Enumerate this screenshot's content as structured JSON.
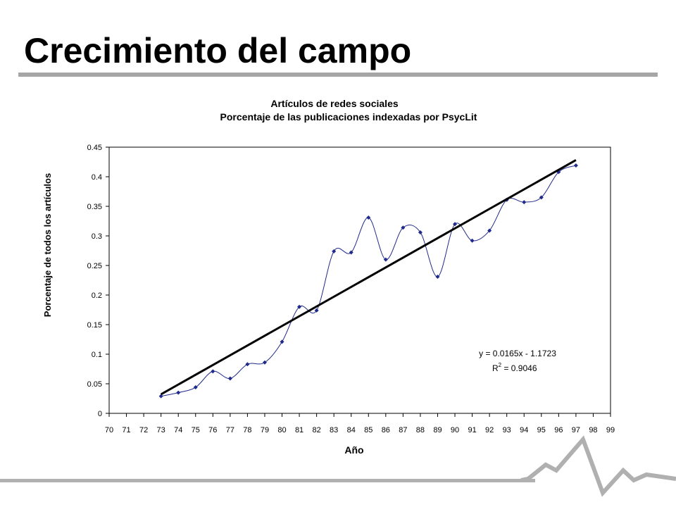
{
  "slide": {
    "title": "Crecimiento del campo"
  },
  "chart_data": {
    "type": "line",
    "title": "Artículos de redes sociales",
    "subtitle": "Porcentaje de las publicaciones indexadas por PsycLit",
    "xlabel": "Año",
    "ylabel": "Porcentaje de todos los artículos",
    "xlim": [
      70,
      99
    ],
    "ylim": [
      0,
      0.45
    ],
    "x_ticks": [
      "70",
      "71",
      "72",
      "73",
      "74",
      "75",
      "76",
      "77",
      "78",
      "79",
      "80",
      "81",
      "82",
      "83",
      "84",
      "85",
      "86",
      "87",
      "88",
      "89",
      "90",
      "91",
      "92",
      "93",
      "94",
      "95",
      "96",
      "97",
      "98",
      "99"
    ],
    "y_ticks": [
      "0",
      "0.05",
      "0.1",
      "0.15",
      "0.2",
      "0.25",
      "0.3",
      "0.35",
      "0.4",
      "0.45"
    ],
    "grid": false,
    "series": [
      {
        "x": [
          73,
          74,
          75,
          76,
          77,
          78,
          79,
          80,
          81,
          82,
          83,
          84,
          85,
          86,
          87,
          88,
          89,
          90,
          91,
          92,
          93,
          94,
          95,
          96,
          97
        ],
        "values": [
          0.029,
          0.035,
          0.044,
          0.071,
          0.059,
          0.083,
          0.086,
          0.121,
          0.18,
          0.174,
          0.274,
          0.272,
          0.331,
          0.26,
          0.314,
          0.306,
          0.231,
          0.32,
          0.292,
          0.309,
          0.361,
          0.357,
          0.365,
          0.408,
          0.419
        ],
        "color": "#1f2a8a",
        "smooth": true
      }
    ],
    "trendline": {
      "slope": 0.0165,
      "intercept": -1.1723,
      "from_x": 73,
      "to_x": 97,
      "color": "#000000"
    },
    "annotations": {
      "equation": "y = 0.0165x - 1.1723",
      "r2_label": "R",
      "r2_exponent": "2",
      "r2_value": " = 0.9046"
    }
  }
}
